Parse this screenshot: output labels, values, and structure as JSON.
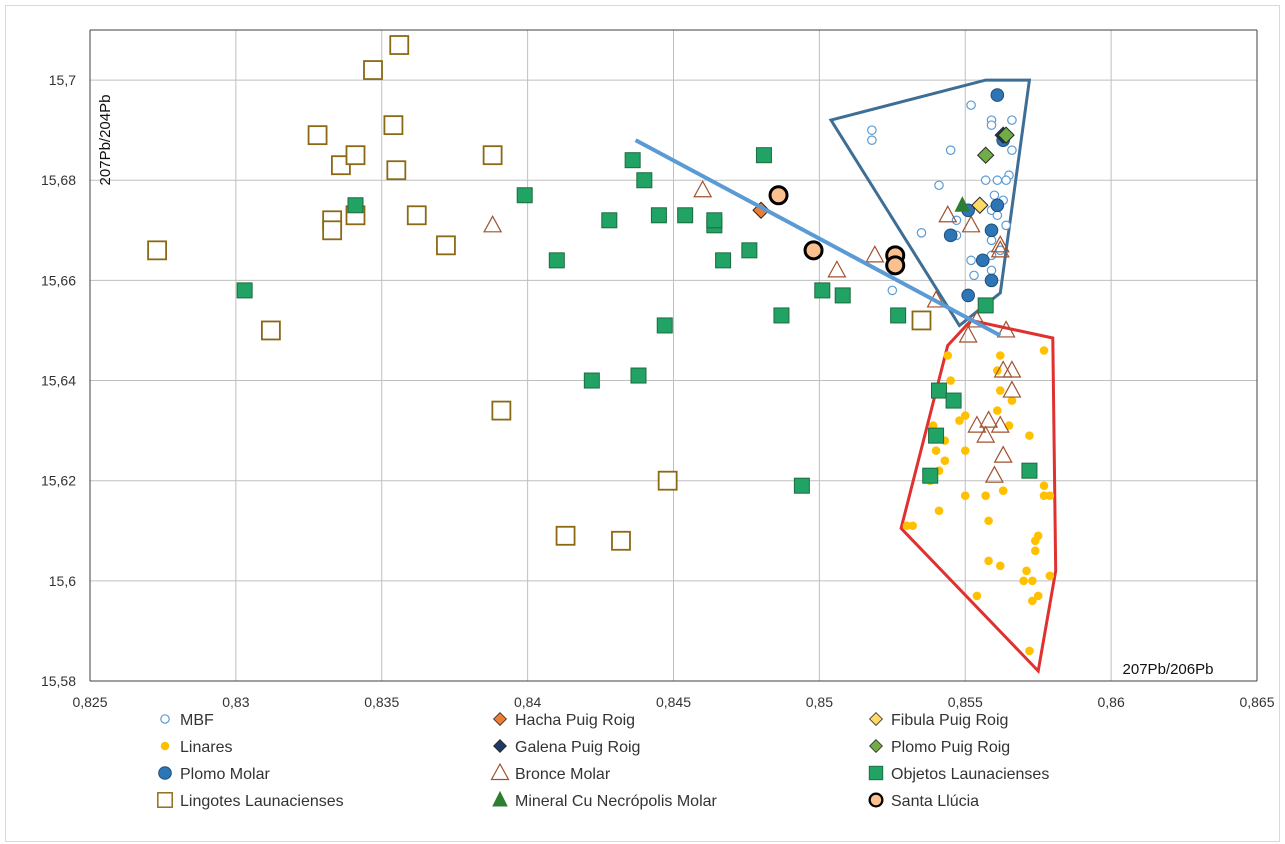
{
  "chart_data": {
    "type": "scatter",
    "xlabel": "207Pb/206Pb",
    "ylabel": "207Pb/204Pb",
    "xlim": [
      0.825,
      0.865
    ],
    "ylim": [
      15.58,
      15.71
    ],
    "grid": true,
    "legend_position": "bottom",
    "x_ticks": [
      0.825,
      0.83,
      0.835,
      0.84,
      0.845,
      0.85,
      0.855,
      0.86,
      0.865
    ],
    "x_tick_labels": [
      "0,825",
      "0,83",
      "0,835",
      "0,84",
      "0,845",
      "0,85",
      "0,855",
      "0,86",
      "0,865"
    ],
    "y_ticks": [
      15.58,
      15.6,
      15.62,
      15.64,
      15.66,
      15.68,
      15.7
    ],
    "y_tick_labels": [
      "15,58",
      "15,6",
      "15,62",
      "15,64",
      "15,66",
      "15,68",
      "15,7"
    ],
    "series": [
      {
        "name": "MBF",
        "marker": "circle-open",
        "color": "#5b9bd5",
        "points": [
          [
            0.8552,
            15.695
          ],
          [
            0.8559,
            15.692
          ],
          [
            0.8566,
            15.692
          ],
          [
            0.8559,
            15.691
          ],
          [
            0.8518,
            15.69
          ],
          [
            0.8518,
            15.688
          ],
          [
            0.8545,
            15.686
          ],
          [
            0.8566,
            15.686
          ],
          [
            0.8565,
            15.681
          ],
          [
            0.8564,
            15.68
          ],
          [
            0.8561,
            15.68
          ],
          [
            0.8557,
            15.68
          ],
          [
            0.8541,
            15.679
          ],
          [
            0.8563,
            15.676
          ],
          [
            0.856,
            15.677
          ],
          [
            0.8559,
            15.674
          ],
          [
            0.8561,
            15.673
          ],
          [
            0.8547,
            15.672
          ],
          [
            0.8564,
            15.671
          ],
          [
            0.8535,
            15.6695
          ],
          [
            0.8547,
            15.669
          ],
          [
            0.8559,
            15.668
          ],
          [
            0.8562,
            15.666
          ],
          [
            0.8559,
            15.665
          ],
          [
            0.8552,
            15.664
          ],
          [
            0.8559,
            15.662
          ],
          [
            0.8553,
            15.661
          ],
          [
            0.8525,
            15.658
          ]
        ]
      },
      {
        "name": "Hacha Puig Roig",
        "marker": "diamond",
        "color": "#ed7d31",
        "points": [
          [
            0.848,
            15.674
          ]
        ]
      },
      {
        "name": "Fibula Puig Roig",
        "marker": "diamond",
        "color": "#ffd966",
        "points": [
          [
            0.8555,
            15.675
          ]
        ]
      },
      {
        "name": "Linares",
        "marker": "circle-small",
        "color": "#ffc000",
        "points": [
          [
            0.8577,
            15.646
          ],
          [
            0.8544,
            15.645
          ],
          [
            0.8562,
            15.645
          ],
          [
            0.8561,
            15.642
          ],
          [
            0.8545,
            15.64
          ],
          [
            0.8562,
            15.638
          ],
          [
            0.8566,
            15.636
          ],
          [
            0.8561,
            15.634
          ],
          [
            0.855,
            15.633
          ],
          [
            0.8548,
            15.632
          ],
          [
            0.8565,
            15.631
          ],
          [
            0.8539,
            15.631
          ],
          [
            0.8572,
            15.629
          ],
          [
            0.8543,
            15.628
          ],
          [
            0.854,
            15.626
          ],
          [
            0.855,
            15.626
          ],
          [
            0.8543,
            15.624
          ],
          [
            0.8541,
            15.622
          ],
          [
            0.8538,
            15.62
          ],
          [
            0.8577,
            15.619
          ],
          [
            0.8577,
            15.617
          ],
          [
            0.8579,
            15.617
          ],
          [
            0.8563,
            15.618
          ],
          [
            0.855,
            15.617
          ],
          [
            0.8557,
            15.617
          ],
          [
            0.8541,
            15.614
          ],
          [
            0.8558,
            15.612
          ],
          [
            0.853,
            15.611
          ],
          [
            0.8532,
            15.611
          ],
          [
            0.8575,
            15.609
          ],
          [
            0.8574,
            15.608
          ],
          [
            0.8574,
            15.606
          ],
          [
            0.8558,
            15.604
          ],
          [
            0.8562,
            15.603
          ],
          [
            0.8571,
            15.602
          ],
          [
            0.8579,
            15.601
          ],
          [
            0.8573,
            15.6
          ],
          [
            0.857,
            15.6
          ],
          [
            0.8575,
            15.597
          ],
          [
            0.8573,
            15.596
          ],
          [
            0.8554,
            15.597
          ],
          [
            0.8572,
            15.586
          ]
        ]
      },
      {
        "name": "Galena Puig Roig",
        "marker": "diamond",
        "color": "#1f3864",
        "points": [
          [
            0.8563,
            15.689
          ]
        ]
      },
      {
        "name": "Plomo Puig Roig",
        "marker": "diamond",
        "color": "#70ad47",
        "points": [
          [
            0.8557,
            15.685
          ],
          [
            0.8564,
            15.689
          ]
        ]
      },
      {
        "name": "Plomo Molar",
        "marker": "circle",
        "color": "#2e75b6",
        "points": [
          [
            0.8561,
            15.697
          ],
          [
            0.8563,
            15.688
          ],
          [
            0.8561,
            15.675
          ],
          [
            0.8551,
            15.674
          ],
          [
            0.8559,
            15.67
          ],
          [
            0.8545,
            15.669
          ],
          [
            0.8556,
            15.664
          ],
          [
            0.8559,
            15.66
          ],
          [
            0.8551,
            15.657
          ]
        ]
      },
      {
        "name": "Bronce Molar",
        "marker": "triangle-open",
        "color": "#a0522d",
        "points": [
          [
            0.846,
            15.678
          ],
          [
            0.8388,
            15.671
          ],
          [
            0.8544,
            15.673
          ],
          [
            0.8552,
            15.671
          ],
          [
            0.8562,
            15.667
          ],
          [
            0.8519,
            15.665
          ],
          [
            0.8562,
            15.666
          ],
          [
            0.8506,
            15.662
          ],
          [
            0.854,
            15.656
          ],
          [
            0.8551,
            15.649
          ],
          [
            0.8564,
            15.65
          ],
          [
            0.8554,
            15.652
          ],
          [
            0.8563,
            15.642
          ],
          [
            0.8566,
            15.642
          ],
          [
            0.8566,
            15.638
          ],
          [
            0.8558,
            15.632
          ],
          [
            0.8562,
            15.631
          ],
          [
            0.8554,
            15.631
          ],
          [
            0.8557,
            15.629
          ],
          [
            0.8563,
            15.625
          ],
          [
            0.856,
            15.621
          ]
        ]
      },
      {
        "name": "Objetos Launacienses",
        "marker": "square",
        "color": "#21a366",
        "points": [
          [
            0.8436,
            15.684
          ],
          [
            0.8481,
            15.685
          ],
          [
            0.844,
            15.68
          ],
          [
            0.8399,
            15.677
          ],
          [
            0.8341,
            15.675
          ],
          [
            0.8428,
            15.672
          ],
          [
            0.8445,
            15.673
          ],
          [
            0.8454,
            15.673
          ],
          [
            0.8464,
            15.671
          ],
          [
            0.8464,
            15.672
          ],
          [
            0.8476,
            15.666
          ],
          [
            0.8467,
            15.664
          ],
          [
            0.841,
            15.664
          ],
          [
            0.8303,
            15.658
          ],
          [
            0.8501,
            15.658
          ],
          [
            0.8508,
            15.657
          ],
          [
            0.8487,
            15.653
          ],
          [
            0.8527,
            15.653
          ],
          [
            0.8557,
            15.655
          ],
          [
            0.8447,
            15.651
          ],
          [
            0.8422,
            15.64
          ],
          [
            0.8438,
            15.641
          ],
          [
            0.8541,
            15.638
          ],
          [
            0.8546,
            15.636
          ],
          [
            0.854,
            15.629
          ],
          [
            0.8538,
            15.621
          ],
          [
            0.8572,
            15.622
          ],
          [
            0.8494,
            15.619
          ]
        ]
      },
      {
        "name": "Lingotes Launacienses",
        "marker": "square-open",
        "color": "#8b6914",
        "points": [
          [
            0.8356,
            15.707
          ],
          [
            0.8347,
            15.702
          ],
          [
            0.8328,
            15.689
          ],
          [
            0.8354,
            15.691
          ],
          [
            0.8336,
            15.683
          ],
          [
            0.8341,
            15.685
          ],
          [
            0.8355,
            15.682
          ],
          [
            0.8388,
            15.685
          ],
          [
            0.8341,
            15.673
          ],
          [
            0.8362,
            15.673
          ],
          [
            0.8333,
            15.672
          ],
          [
            0.8333,
            15.67
          ],
          [
            0.8372,
            15.667
          ],
          [
            0.8273,
            15.666
          ],
          [
            0.8312,
            15.65
          ],
          [
            0.8535,
            15.652
          ],
          [
            0.8391,
            15.634
          ],
          [
            0.8448,
            15.62
          ],
          [
            0.8413,
            15.609
          ],
          [
            0.8432,
            15.608
          ]
        ]
      },
      {
        "name": "Mineral Cu Necrópolis Molar",
        "marker": "triangle",
        "color": "#2e7d32",
        "points": [
          [
            0.8549,
            15.675
          ]
        ]
      },
      {
        "name": "Santa Llúcia",
        "marker": "circle-bold",
        "color": "#fac08f",
        "points": [
          [
            0.8486,
            15.677
          ],
          [
            0.8498,
            15.666
          ],
          [
            0.8526,
            15.665
          ],
          [
            0.8526,
            15.663
          ]
        ]
      }
    ],
    "annotations": {
      "trend_line": {
        "color": "#5b9bd5",
        "points": [
          [
            0.8437,
            15.688
          ],
          [
            0.8562,
            15.649
          ]
        ]
      },
      "polygon_blue": {
        "color": "#3d6e96",
        "points": [
          [
            0.8504,
            15.692
          ],
          [
            0.8557,
            15.7
          ],
          [
            0.8572,
            15.7
          ],
          [
            0.8562,
            15.6575
          ],
          [
            0.8548,
            15.651
          ]
        ]
      },
      "polygon_red": {
        "color": "#e03030",
        "points": [
          [
            0.8544,
            15.647
          ],
          [
            0.8552,
            15.652
          ],
          [
            0.858,
            15.6485
          ],
          [
            0.8581,
            15.602
          ],
          [
            0.8575,
            15.582
          ],
          [
            0.8528,
            15.6105
          ]
        ]
      }
    }
  },
  "legend": {
    "rows": [
      [
        "MBF",
        "Hacha Puig Roig",
        "Fibula Puig Roig"
      ],
      [
        "Linares",
        "Galena Puig Roig",
        "Plomo Puig Roig"
      ],
      [
        "Plomo Molar",
        "Bronce Molar",
        "Objetos Launacienses"
      ],
      [
        "Lingotes Launacienses",
        "Mineral Cu Necrópolis Molar",
        "Santa Llúcia"
      ]
    ]
  }
}
